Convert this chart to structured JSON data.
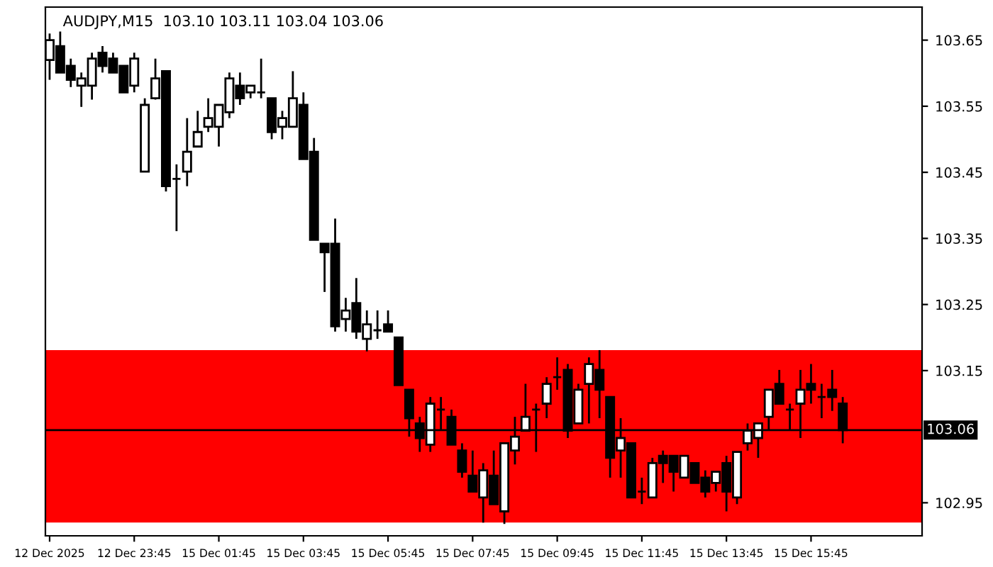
{
  "chart_data": {
    "type": "candlestick",
    "title": "AUDJPY,M15  103.10 103.11 103.04 103.06",
    "categories": [
      "12 Dec 2025",
      null,
      null,
      null,
      null,
      null,
      null,
      null,
      "12 Dec 23:45",
      null,
      null,
      null,
      null,
      null,
      null,
      null,
      "15 Dec 01:45",
      null,
      null,
      null,
      null,
      null,
      null,
      null,
      "15 Dec 03:45",
      null,
      null,
      null,
      null,
      null,
      null,
      null,
      "15 Dec 05:45",
      null,
      null,
      null,
      null,
      null,
      null,
      null,
      "15 Dec 07:45",
      null,
      null,
      null,
      null,
      null,
      null,
      null,
      "15 Dec 09:45",
      null,
      null,
      null,
      null,
      null,
      null,
      null,
      "15 Dec 11:45",
      null,
      null,
      null,
      null,
      null,
      null,
      null,
      "15 Dec 13:45",
      null,
      null,
      null,
      null,
      null,
      null,
      null,
      "15 Dec 15:45",
      null,
      null,
      null,
      null,
      null,
      null,
      null,
      null,
      null,
      null
    ],
    "ohlc": [
      [
        103.62,
        103.66,
        103.59,
        103.65
      ],
      [
        103.641,
        103.663,
        103.601,
        103.601
      ],
      [
        103.611,
        103.622,
        103.579,
        103.59
      ],
      [
        103.581,
        103.601,
        103.549,
        103.592
      ],
      [
        103.581,
        103.631,
        103.56,
        103.622
      ],
      [
        103.631,
        103.641,
        103.601,
        103.611
      ],
      [
        103.622,
        103.631,
        103.601,
        103.601
      ],
      [
        103.611,
        103.611,
        103.571,
        103.571
      ],
      [
        103.581,
        103.631,
        103.571,
        103.622
      ],
      [
        103.451,
        103.562,
        103.451,
        103.552
      ],
      [
        103.562,
        103.622,
        103.56,
        103.592
      ],
      [
        103.603,
        103.603,
        103.421,
        103.429
      ],
      [
        103.44,
        103.462,
        103.361,
        103.44
      ],
      [
        103.451,
        103.532,
        103.429,
        103.481
      ],
      [
        103.489,
        103.543,
        103.489,
        103.511
      ],
      [
        103.519,
        103.562,
        103.511,
        103.532
      ],
      [
        103.519,
        103.552,
        103.489,
        103.552
      ],
      [
        103.541,
        103.601,
        103.532,
        103.592
      ],
      [
        103.581,
        103.601,
        103.552,
        103.562
      ],
      [
        103.571,
        103.581,
        103.562,
        103.581
      ],
      [
        103.571,
        103.622,
        103.562,
        103.571
      ],
      [
        103.562,
        103.562,
        103.5,
        103.511
      ],
      [
        103.519,
        103.543,
        103.5,
        103.532
      ],
      [
        103.519,
        103.603,
        103.519,
        103.562
      ],
      [
        103.552,
        103.571,
        103.47,
        103.47
      ],
      [
        103.481,
        103.502,
        103.348,
        103.348
      ],
      [
        103.342,
        103.342,
        103.269,
        103.329
      ],
      [
        103.342,
        103.38,
        103.209,
        103.217
      ],
      [
        103.228,
        103.26,
        103.209,
        103.241
      ],
      [
        103.252,
        103.29,
        103.198,
        103.209
      ],
      [
        103.198,
        103.241,
        103.179,
        103.22
      ],
      [
        103.211,
        103.241,
        103.198,
        103.211
      ],
      [
        103.22,
        103.241,
        103.209,
        103.209
      ],
      [
        103.2,
        103.2,
        103.128,
        103.128
      ],
      [
        103.121,
        103.121,
        103.05,
        103.078
      ],
      [
        103.07,
        103.08,
        103.027,
        103.048
      ],
      [
        103.038,
        103.11,
        103.027,
        103.1
      ],
      [
        103.091,
        103.11,
        103.059,
        103.091
      ],
      [
        103.08,
        103.091,
        103.038,
        103.038
      ],
      [
        103.029,
        103.04,
        102.988,
        102.997
      ],
      [
        102.991,
        103.029,
        102.967,
        102.967
      ],
      [
        102.958,
        103.01,
        102.92,
        102.999
      ],
      [
        102.991,
        103.029,
        102.948,
        102.948
      ],
      [
        102.937,
        103.04,
        102.918,
        103.04
      ],
      [
        103.029,
        103.08,
        103.008,
        103.05
      ],
      [
        103.059,
        103.13,
        103.059,
        103.08
      ],
      [
        103.091,
        103.1,
        103.027,
        103.091
      ],
      [
        103.1,
        103.14,
        103.078,
        103.13
      ],
      [
        103.14,
        103.17,
        103.121,
        103.14
      ],
      [
        103.151,
        103.16,
        103.048,
        103.059
      ],
      [
        103.07,
        103.13,
        103.07,
        103.121
      ],
      [
        103.13,
        103.17,
        103.07,
        103.16
      ],
      [
        103.151,
        103.181,
        103.078,
        103.121
      ],
      [
        103.11,
        103.11,
        102.988,
        103.018
      ],
      [
        103.029,
        103.078,
        102.988,
        103.048
      ],
      [
        103.04,
        103.04,
        102.958,
        102.958
      ],
      [
        102.967,
        102.988,
        102.948,
        102.967
      ],
      [
        102.958,
        103.018,
        102.958,
        103.01
      ],
      [
        103.021,
        103.029,
        102.98,
        103.01
      ],
      [
        103.021,
        103.021,
        102.967,
        102.997
      ],
      [
        102.988,
        103.021,
        102.988,
        103.021
      ],
      [
        103.01,
        103.01,
        102.98,
        102.98
      ],
      [
        102.988,
        102.999,
        102.958,
        102.967
      ],
      [
        102.98,
        102.997,
        102.967,
        102.997
      ],
      [
        103.01,
        103.021,
        102.937,
        102.967
      ],
      [
        102.958,
        103.027,
        102.948,
        103.027
      ],
      [
        103.04,
        103.07,
        103.029,
        103.059
      ],
      [
        103.048,
        103.07,
        103.018,
        103.07
      ],
      [
        103.08,
        103.121,
        103.059,
        103.121
      ],
      [
        103.13,
        103.151,
        103.1,
        103.1
      ],
      [
        103.091,
        103.1,
        103.059,
        103.091
      ],
      [
        103.1,
        103.151,
        103.048,
        103.121
      ],
      [
        103.13,
        103.16,
        103.1,
        103.121
      ],
      [
        103.11,
        103.13,
        103.078,
        103.11
      ],
      [
        103.121,
        103.151,
        103.089,
        103.11
      ],
      [
        103.1,
        103.11,
        103.04,
        103.06
      ],
      null,
      null,
      null,
      null,
      null,
      null,
      null
    ],
    "ylim": [
      102.9,
      103.7
    ],
    "yticks": [
      102.95,
      103.15,
      103.25,
      103.35,
      103.45,
      103.55,
      103.65
    ],
    "ref_lines": [
      {
        "axis": "y",
        "value": 103.06,
        "label": "103.06",
        "color": "#000000"
      }
    ],
    "bands": [
      {
        "axis": "y",
        "from": 102.92,
        "to": 103.181,
        "color": "#ff0000"
      }
    ],
    "grid": false,
    "legend": false
  }
}
